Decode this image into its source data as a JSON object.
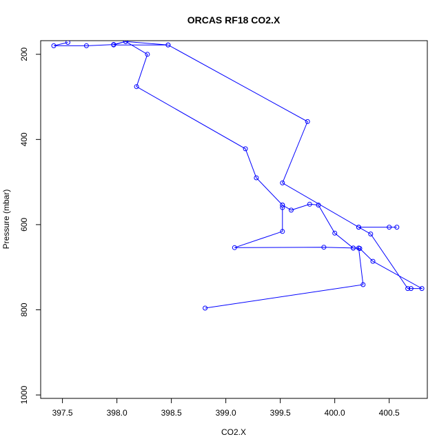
{
  "chart_data": {
    "type": "line",
    "title": "ORCAS RF18 CO2.X",
    "xlabel": "CO2.X",
    "ylabel": "Pressure (mbar)",
    "xlim": [
      397.3,
      400.85
    ],
    "ylim": [
      1008,
      168
    ],
    "y_reversed": true,
    "grid": false,
    "x_ticks": [
      "397.5",
      "398.0",
      "398.5",
      "399.0",
      "399.5",
      "400.0",
      "400.5"
    ],
    "y_ticks": [
      "200",
      "400",
      "600",
      "800",
      "1000"
    ],
    "line_color": "#0000ff",
    "marker": "open-circle",
    "series": [
      {
        "x": [
          397.55,
          397.42,
          397.72,
          397.97,
          398.08,
          398.28,
          398.18,
          399.18,
          399.28,
          399.52,
          399.52,
          399.6,
          399.77,
          399.85,
          400.0,
          400.17,
          400.23,
          400.35,
          400.8,
          400.7,
          400.67,
          400.33,
          400.22,
          400.57,
          400.5,
          400.22,
          399.52,
          399.75,
          398.47,
          398.08,
          397.97,
          398.47
        ],
        "y": [
          172,
          180,
          180,
          177,
          170,
          200,
          276,
          422,
          490,
          554,
          554,
          566,
          552,
          554,
          620,
          655,
          656,
          686,
          750,
          750,
          750,
          622,
          606,
          606,
          606,
          606,
          502,
          358,
          178,
          170,
          178,
          178
        ]
      },
      {
        "x": [
          399.52,
          399.52,
          399.08,
          399.9,
          400.17,
          400.22,
          400.26,
          398.81
        ],
        "y": [
          560,
          616,
          654,
          653,
          655,
          655,
          741,
          796
        ]
      }
    ]
  }
}
